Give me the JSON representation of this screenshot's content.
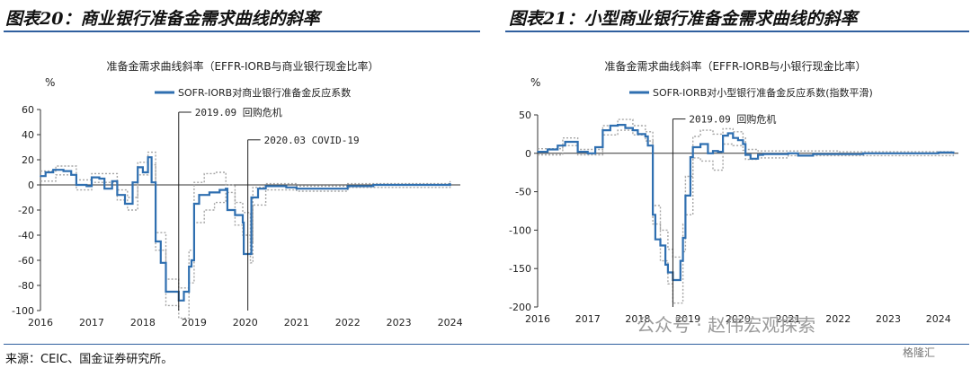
{
  "titles": {
    "left": "图表20：商业银行准备金需求曲线的斜率",
    "right": "图表21：小型商业银行准备金需求曲线的斜率"
  },
  "footer": {
    "source": "来源：CEIC、国金证券研究所。"
  },
  "watermark": {
    "text": "公众号 · 赵伟宏观探索",
    "badge": "格隆汇"
  },
  "colors": {
    "series": "#2f6fb0",
    "band": "#a6a6a6",
    "axis": "#333333",
    "title_rule": "#2f5f9e"
  },
  "chart_data": [
    {
      "type": "line",
      "title": "准备金需求曲线斜率（EFFR-IORB与商业银行现金比率）",
      "unit": "%",
      "legend": "SOFR-IORB对商业银行准备金反应系数",
      "x_ticks": [
        "2016",
        "2017",
        "2018",
        "2019",
        "2020",
        "2021",
        "2022",
        "2023",
        "2024"
      ],
      "xlim": [
        2016,
        2024.2
      ],
      "ylim": [
        -100,
        60
      ],
      "y_ticks": [
        60,
        40,
        20,
        0,
        -20,
        -40,
        -60,
        -80,
        -100
      ],
      "annotations": [
        {
          "x": 2018.7,
          "y": 55,
          "text": "2019.09 回购危机"
        },
        {
          "x": 2020.05,
          "y": 33,
          "text": "2020.03 COVID-19"
        }
      ],
      "series": [
        {
          "name": "SOFR-IORB对商业银行准备金反应系数",
          "points": [
            [
              2016.0,
              7
            ],
            [
              2016.1,
              10
            ],
            [
              2016.25,
              12
            ],
            [
              2016.45,
              11
            ],
            [
              2016.6,
              8
            ],
            [
              2016.7,
              0
            ],
            [
              2016.9,
              -1
            ],
            [
              2017.0,
              6
            ],
            [
              2017.15,
              5
            ],
            [
              2017.25,
              -3
            ],
            [
              2017.4,
              3
            ],
            [
              2017.5,
              -8
            ],
            [
              2017.65,
              -15
            ],
            [
              2017.8,
              2
            ],
            [
              2017.9,
              14
            ],
            [
              2018.0,
              10
            ],
            [
              2018.1,
              22
            ],
            [
              2018.17,
              2
            ],
            [
              2018.25,
              -45
            ],
            [
              2018.35,
              -62
            ],
            [
              2018.45,
              -85
            ],
            [
              2018.6,
              -85
            ],
            [
              2018.7,
              -92
            ],
            [
              2018.8,
              -85
            ],
            [
              2018.9,
              -65
            ],
            [
              2018.95,
              -60
            ],
            [
              2019.0,
              -15
            ],
            [
              2019.1,
              -8
            ],
            [
              2019.3,
              -6
            ],
            [
              2019.5,
              -4
            ],
            [
              2019.62,
              -3
            ],
            [
              2019.65,
              -20
            ],
            [
              2019.8,
              -24
            ],
            [
              2019.95,
              -30
            ],
            [
              2019.97,
              -55
            ],
            [
              2020.1,
              -55
            ],
            [
              2020.12,
              -10
            ],
            [
              2020.25,
              -3
            ],
            [
              2020.4,
              -1
            ],
            [
              2020.8,
              -2
            ],
            [
              2021.0,
              -3
            ],
            [
              2021.5,
              -3
            ],
            [
              2022.0,
              -1
            ],
            [
              2022.5,
              0
            ],
            [
              2023.0,
              0
            ],
            [
              2023.5,
              0
            ],
            [
              2024.0,
              1
            ]
          ]
        },
        {
          "name": "upper",
          "points": [
            [
              2016.0,
              11
            ],
            [
              2016.3,
              15
            ],
            [
              2016.7,
              4
            ],
            [
              2017.0,
              9
            ],
            [
              2017.5,
              -4
            ],
            [
              2017.7,
              -10
            ],
            [
              2017.9,
              18
            ],
            [
              2018.1,
              26
            ],
            [
              2018.25,
              -38
            ],
            [
              2018.45,
              -75
            ],
            [
              2018.7,
              -82
            ],
            [
              2018.9,
              -52
            ],
            [
              2019.0,
              2
            ],
            [
              2019.2,
              9
            ],
            [
              2019.4,
              10
            ],
            [
              2019.62,
              0
            ],
            [
              2019.8,
              -14
            ],
            [
              2019.95,
              -22
            ],
            [
              2020.1,
              -46
            ],
            [
              2020.15,
              -2
            ],
            [
              2020.4,
              1
            ],
            [
              2021.0,
              -1
            ],
            [
              2022.0,
              1
            ],
            [
              2024.0,
              3
            ]
          ]
        },
        {
          "name": "lower",
          "points": [
            [
              2016.0,
              3
            ],
            [
              2016.3,
              8
            ],
            [
              2016.7,
              -4
            ],
            [
              2017.0,
              2
            ],
            [
              2017.5,
              -12
            ],
            [
              2017.7,
              -20
            ],
            [
              2017.9,
              8
            ],
            [
              2018.1,
              16
            ],
            [
              2018.25,
              -52
            ],
            [
              2018.45,
              -96
            ],
            [
              2018.7,
              -106
            ],
            [
              2018.9,
              -78
            ],
            [
              2019.0,
              -30
            ],
            [
              2019.2,
              -20
            ],
            [
              2019.4,
              -14
            ],
            [
              2019.62,
              -6
            ],
            [
              2019.8,
              -32
            ],
            [
              2019.95,
              -40
            ],
            [
              2020.1,
              -62
            ],
            [
              2020.15,
              -16
            ],
            [
              2020.4,
              -4
            ],
            [
              2021.0,
              -5
            ],
            [
              2022.0,
              -2
            ],
            [
              2024.0,
              -1
            ]
          ]
        }
      ]
    },
    {
      "type": "line",
      "title": "准备金需求曲线斜率（EFFR-IORB与小银行现金比率）",
      "unit": "%",
      "legend": "SOFR-IORB对小型银行准备金反应系数(指数平滑)",
      "x_ticks": [
        "2016",
        "2017",
        "2018",
        "2019",
        "2020",
        "2021",
        "2022",
        "2023",
        "2024"
      ],
      "xlim": [
        2016,
        2024.4
      ],
      "ylim": [
        -200,
        50
      ],
      "y_ticks": [
        50,
        0,
        -50,
        -100,
        -150,
        -200
      ],
      "annotations": [
        {
          "x": 2018.7,
          "y": 40,
          "text": "2019.09 回购危机"
        }
      ],
      "series": [
        {
          "name": "SOFR-IORB对小型银行准备金反应系数(指数平滑)",
          "points": [
            [
              2016.0,
              2
            ],
            [
              2016.2,
              5
            ],
            [
              2016.4,
              10
            ],
            [
              2016.55,
              15
            ],
            [
              2016.7,
              15
            ],
            [
              2016.8,
              2
            ],
            [
              2017.0,
              0
            ],
            [
              2017.15,
              8
            ],
            [
              2017.3,
              30
            ],
            [
              2017.45,
              36
            ],
            [
              2017.6,
              37
            ],
            [
              2017.75,
              33
            ],
            [
              2017.9,
              30
            ],
            [
              2018.0,
              25
            ],
            [
              2018.15,
              22
            ],
            [
              2018.2,
              10
            ],
            [
              2018.3,
              -80
            ],
            [
              2018.35,
              -112
            ],
            [
              2018.45,
              -120
            ],
            [
              2018.55,
              -145
            ],
            [
              2018.6,
              -155
            ],
            [
              2018.7,
              -165
            ],
            [
              2018.85,
              -140
            ],
            [
              2018.9,
              -110
            ],
            [
              2018.95,
              -55
            ],
            [
              2019.05,
              -5
            ],
            [
              2019.1,
              8
            ],
            [
              2019.25,
              12
            ],
            [
              2019.4,
              0
            ],
            [
              2019.5,
              3
            ],
            [
              2019.6,
              2
            ],
            [
              2019.7,
              23
            ],
            [
              2019.8,
              26
            ],
            [
              2019.9,
              20
            ],
            [
              2020.0,
              17
            ],
            [
              2020.1,
              12
            ],
            [
              2020.15,
              -2
            ],
            [
              2020.25,
              -7
            ],
            [
              2020.4,
              -2
            ],
            [
              2020.5,
              -1
            ],
            [
              2021.0,
              0
            ],
            [
              2021.2,
              -3
            ],
            [
              2021.5,
              -1
            ],
            [
              2022.0,
              -1
            ],
            [
              2022.5,
              0
            ],
            [
              2023.0,
              0
            ],
            [
              2023.5,
              0
            ],
            [
              2024.0,
              1
            ],
            [
              2024.3,
              0
            ]
          ]
        },
        {
          "name": "upper",
          "points": [
            [
              2016.0,
              6
            ],
            [
              2016.5,
              20
            ],
            [
              2016.8,
              5
            ],
            [
              2017.3,
              36
            ],
            [
              2017.6,
              44
            ],
            [
              2017.9,
              36
            ],
            [
              2018.15,
              28
            ],
            [
              2018.3,
              -68
            ],
            [
              2018.45,
              -100
            ],
            [
              2018.6,
              -125
            ],
            [
              2018.7,
              -135
            ],
            [
              2018.9,
              -92
            ],
            [
              2018.95,
              -30
            ],
            [
              2019.1,
              22
            ],
            [
              2019.25,
              30
            ],
            [
              2019.5,
              25
            ],
            [
              2019.7,
              32
            ],
            [
              2019.9,
              28
            ],
            [
              2020.1,
              20
            ],
            [
              2020.15,
              5
            ],
            [
              2020.4,
              3
            ],
            [
              2021.0,
              3
            ],
            [
              2022.0,
              2
            ],
            [
              2024.3,
              3
            ]
          ]
        },
        {
          "name": "lower",
          "points": [
            [
              2016.0,
              -2
            ],
            [
              2016.5,
              10
            ],
            [
              2016.8,
              -2
            ],
            [
              2017.3,
              24
            ],
            [
              2017.6,
              30
            ],
            [
              2017.9,
              24
            ],
            [
              2018.15,
              16
            ],
            [
              2018.3,
              -92
            ],
            [
              2018.45,
              -140
            ],
            [
              2018.6,
              -170
            ],
            [
              2018.7,
              -195
            ],
            [
              2018.9,
              -128
            ],
            [
              2018.95,
              -80
            ],
            [
              2019.1,
              -6
            ],
            [
              2019.25,
              -10
            ],
            [
              2019.5,
              -22
            ],
            [
              2019.7,
              12
            ],
            [
              2019.9,
              10
            ],
            [
              2020.1,
              4
            ],
            [
              2020.15,
              -8
            ],
            [
              2020.4,
              -6
            ],
            [
              2021.0,
              -3
            ],
            [
              2022.0,
              -3
            ],
            [
              2024.3,
              -2
            ]
          ]
        }
      ]
    }
  ]
}
